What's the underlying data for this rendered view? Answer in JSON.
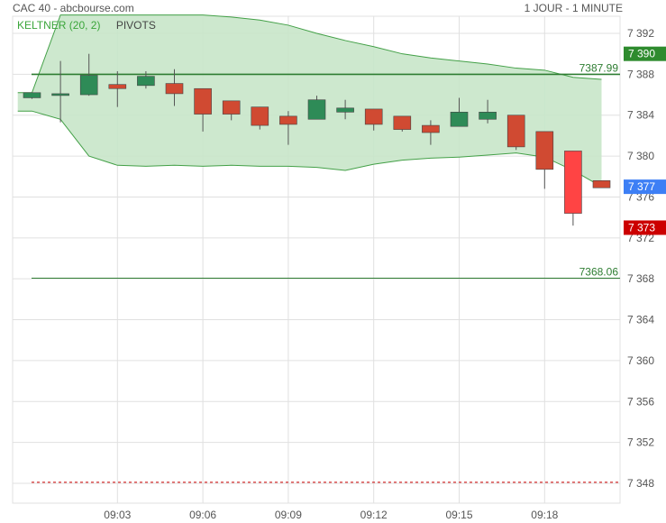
{
  "header": {
    "instrument": "CAC 40 - abcbourse.com",
    "period": "1 JOUR - 1 MINUTE"
  },
  "legend": {
    "keltner": "KELTNER (20, 2)",
    "pivots": "PIVOTS"
  },
  "colors": {
    "up": "#2e8b57",
    "down": "#d04a32",
    "last_down": "#ff4444",
    "keltner_fill": "#c8e6c9",
    "keltner_line": "#43a047",
    "pivot_line": "#2e7d32",
    "dashed_line": "#cc0000",
    "grid": "#e0e0e0"
  },
  "chart_data": {
    "type": "candlestick",
    "title": "CAC 40",
    "xlabel": "",
    "ylabel": "",
    "ylim": [
      7346,
      7394
    ],
    "x_ticks": [
      {
        "label": "09:03",
        "index": 3
      },
      {
        "label": "09:06",
        "index": 6
      },
      {
        "label": "09:09",
        "index": 9
      },
      {
        "label": "09:12",
        "index": 12
      },
      {
        "label": "09:15",
        "index": 15
      },
      {
        "label": "09:18",
        "index": 18
      }
    ],
    "y_ticks": [
      {
        "value": 7392,
        "label": "7 392"
      },
      {
        "value": 7388,
        "label": "7 388"
      },
      {
        "value": 7384,
        "label": "7 384"
      },
      {
        "value": 7380,
        "label": "7 380"
      },
      {
        "value": 7376,
        "label": "7 376"
      },
      {
        "value": 7372,
        "label": "7 372"
      },
      {
        "value": 7368,
        "label": "7 368"
      },
      {
        "value": 7364,
        "label": "7 364"
      },
      {
        "value": 7360,
        "label": "7 360"
      },
      {
        "value": 7356,
        "label": "7 356"
      },
      {
        "value": 7352,
        "label": "7 352"
      },
      {
        "value": 7348,
        "label": "7 348"
      }
    ],
    "candles": [
      {
        "o": 7385.7,
        "h": 7385.8,
        "c": 7386.2,
        "l": 7385.6
      },
      {
        "o": 7386.0,
        "h": 7389.3,
        "c": 7386.1,
        "l": 7383.3
      },
      {
        "o": 7386.0,
        "h": 7390.0,
        "c": 7387.9,
        "l": 7385.9
      },
      {
        "o": 7387.0,
        "h": 7388.3,
        "c": 7386.6,
        "l": 7384.8
      },
      {
        "o": 7386.9,
        "h": 7388.3,
        "c": 7387.8,
        "l": 7386.6
      },
      {
        "o": 7387.1,
        "h": 7388.5,
        "c": 7386.1,
        "l": 7384.9
      },
      {
        "o": 7386.6,
        "h": 7386.6,
        "c": 7384.1,
        "l": 7382.4
      },
      {
        "o": 7385.4,
        "h": 7385.4,
        "c": 7384.1,
        "l": 7383.5
      },
      {
        "o": 7384.8,
        "h": 7384.8,
        "c": 7383.0,
        "l": 7382.6
      },
      {
        "o": 7383.9,
        "h": 7384.4,
        "c": 7383.1,
        "l": 7381.1
      },
      {
        "o": 7383.6,
        "h": 7385.9,
        "c": 7385.5,
        "l": 7383.6
      },
      {
        "o": 7384.3,
        "h": 7385.5,
        "c": 7384.7,
        "l": 7383.6
      },
      {
        "o": 7384.6,
        "h": 7384.6,
        "c": 7383.1,
        "l": 7382.5
      },
      {
        "o": 7383.9,
        "h": 7383.9,
        "c": 7382.6,
        "l": 7382.4
      },
      {
        "o": 7383.0,
        "h": 7383.5,
        "c": 7382.3,
        "l": 7381.1
      },
      {
        "o": 7382.9,
        "h": 7385.7,
        "c": 7384.3,
        "l": 7382.9
      },
      {
        "o": 7383.6,
        "h": 7385.5,
        "c": 7384.3,
        "l": 7383.2
      },
      {
        "o": 7384.0,
        "h": 7384.0,
        "c": 7380.9,
        "l": 7380.6
      },
      {
        "o": 7382.4,
        "h": 7382.4,
        "c": 7378.7,
        "l": 7376.8
      },
      {
        "o": 7380.5,
        "h": 7380.5,
        "c": 7374.4,
        "l": 7373.2
      },
      {
        "o": 7377.6,
        "h": 7377.6,
        "c": 7376.9,
        "l": 7376.9
      }
    ],
    "keltner_upper": [
      7386.2,
      7386.2,
      7393.8,
      7393.8,
      7393.8,
      7393.8,
      7393.8,
      7393.8,
      7393.6,
      7393.3,
      7392.8,
      7392.0,
      7391.3,
      7390.7,
      7390.0,
      7389.6,
      7389.3,
      7389.0,
      7388.6,
      7388.4,
      7387.7,
      7387.5
    ],
    "keltner_lower": [
      7384.4,
      7384.4,
      7383.6,
      7380.0,
      7379.1,
      7379.0,
      7379.1,
      7379.0,
      7379.1,
      7379.0,
      7379.0,
      7378.9,
      7378.6,
      7379.2,
      7379.6,
      7379.8,
      7379.9,
      7380.1,
      7380.3,
      7379.9,
      7378.6,
      7377.0
    ],
    "band_x_offsets": [
      -0.5,
      0.0,
      1.0,
      2.0,
      3.0,
      4.0,
      5.0,
      6.0,
      7.0,
      8.0,
      9.0,
      10.0,
      11.0,
      12.0,
      13.0,
      14.0,
      15.0,
      16.0,
      17.0,
      18.0,
      19.0,
      20.0
    ],
    "pivot_lines": [
      {
        "value": 7387.99,
        "label": "7387.99"
      },
      {
        "value": 7368.06,
        "label": "7368.06"
      }
    ],
    "dashed_line_value": 7348.1,
    "price_tags": [
      {
        "value": 7390,
        "label": "7 390",
        "color": "#2e8b2e"
      },
      {
        "value": 7377,
        "label": "7 377",
        "color": "#3d7ff5"
      },
      {
        "value": 7373,
        "label": "7 373",
        "color": "#cc0000"
      }
    ]
  }
}
